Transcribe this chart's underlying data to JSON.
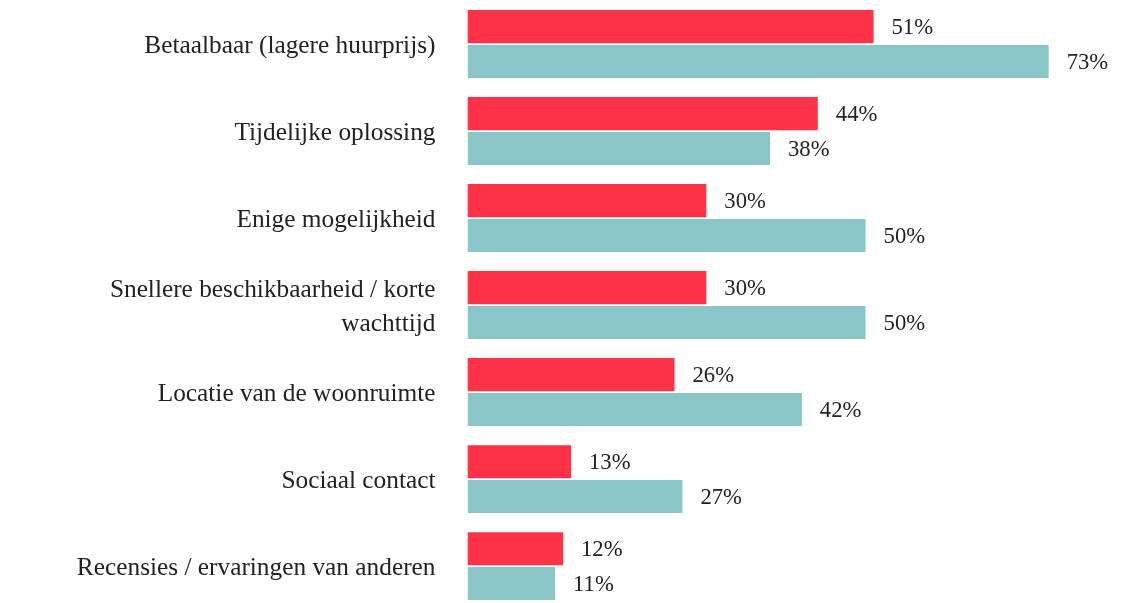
{
  "chart_data": {
    "type": "bar",
    "orientation": "horizontal",
    "categories": [
      "Betaalbaar (lagere huurprijs)",
      "Tijdelijke oplossing",
      "Enige mogelijkheid",
      "Snellere beschikbaarheid / korte wachttijd",
      "Locatie van de woonruimte",
      "Sociaal contact",
      "Recensies / ervaringen van anderen"
    ],
    "series": [
      {
        "color": "#ff3347",
        "values": [
          51,
          44,
          30,
          30,
          26,
          13,
          12
        ],
        "value_labels": [
          "51%",
          "44%",
          "30%",
          "30%",
          "26%",
          "13%",
          "12%"
        ]
      },
      {
        "color": "#8ac6c8",
        "values": [
          73,
          38,
          50,
          50,
          42,
          27,
          11
        ],
        "value_labels": [
          "73%",
          "38%",
          "50%",
          "50%",
          "42%",
          "27%",
          "11%"
        ]
      }
    ]
  }
}
